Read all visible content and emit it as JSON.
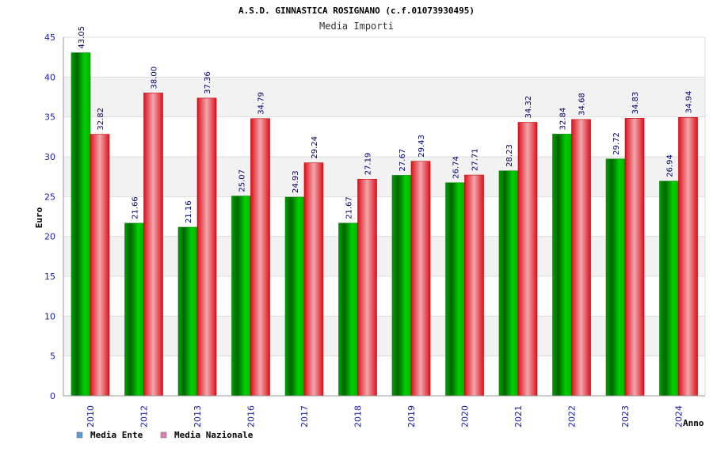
{
  "chart_data": {
    "type": "bar",
    "title": "A.S.D. GINNASTICA ROSIGNANO (c.f.01073930495)",
    "subtitle": "Media Importi",
    "xlabel": "Anno",
    "ylabel": "Euro",
    "ylim": [
      0,
      45
    ],
    "ytick_step": 5,
    "grid": true,
    "legend_position": "bottom-left",
    "categories": [
      "2010",
      "2012",
      "2013",
      "2016",
      "2017",
      "2018",
      "2019",
      "2020",
      "2021",
      "2022",
      "2023",
      "2024"
    ],
    "series": [
      {
        "name": "Media Ente",
        "values": [
          43.05,
          21.66,
          21.16,
          25.07,
          24.93,
          21.67,
          27.67,
          26.74,
          28.23,
          32.84,
          29.72,
          26.94
        ],
        "labels": [
          "43.05",
          "21.66",
          "21.16",
          "25.07",
          "24.93",
          "21.67",
          "27.67",
          "26.74",
          "28.23",
          "32.84",
          "29.72",
          "26.94"
        ],
        "color": "#00b400",
        "legend_color": "#5b9bd5"
      },
      {
        "name": "Media Nazionale",
        "values": [
          32.82,
          38.0,
          37.36,
          34.79,
          29.24,
          27.19,
          29.43,
          27.71,
          34.32,
          34.68,
          34.83,
          34.94
        ],
        "labels": [
          "32.82",
          "38.00",
          "37.36",
          "34.79",
          "29.24",
          "27.19",
          "29.43",
          "27.71",
          "34.32",
          "34.68",
          "34.83",
          "34.94"
        ],
        "color": "#e8101e",
        "legend_color": "#e67ab5"
      }
    ]
  }
}
